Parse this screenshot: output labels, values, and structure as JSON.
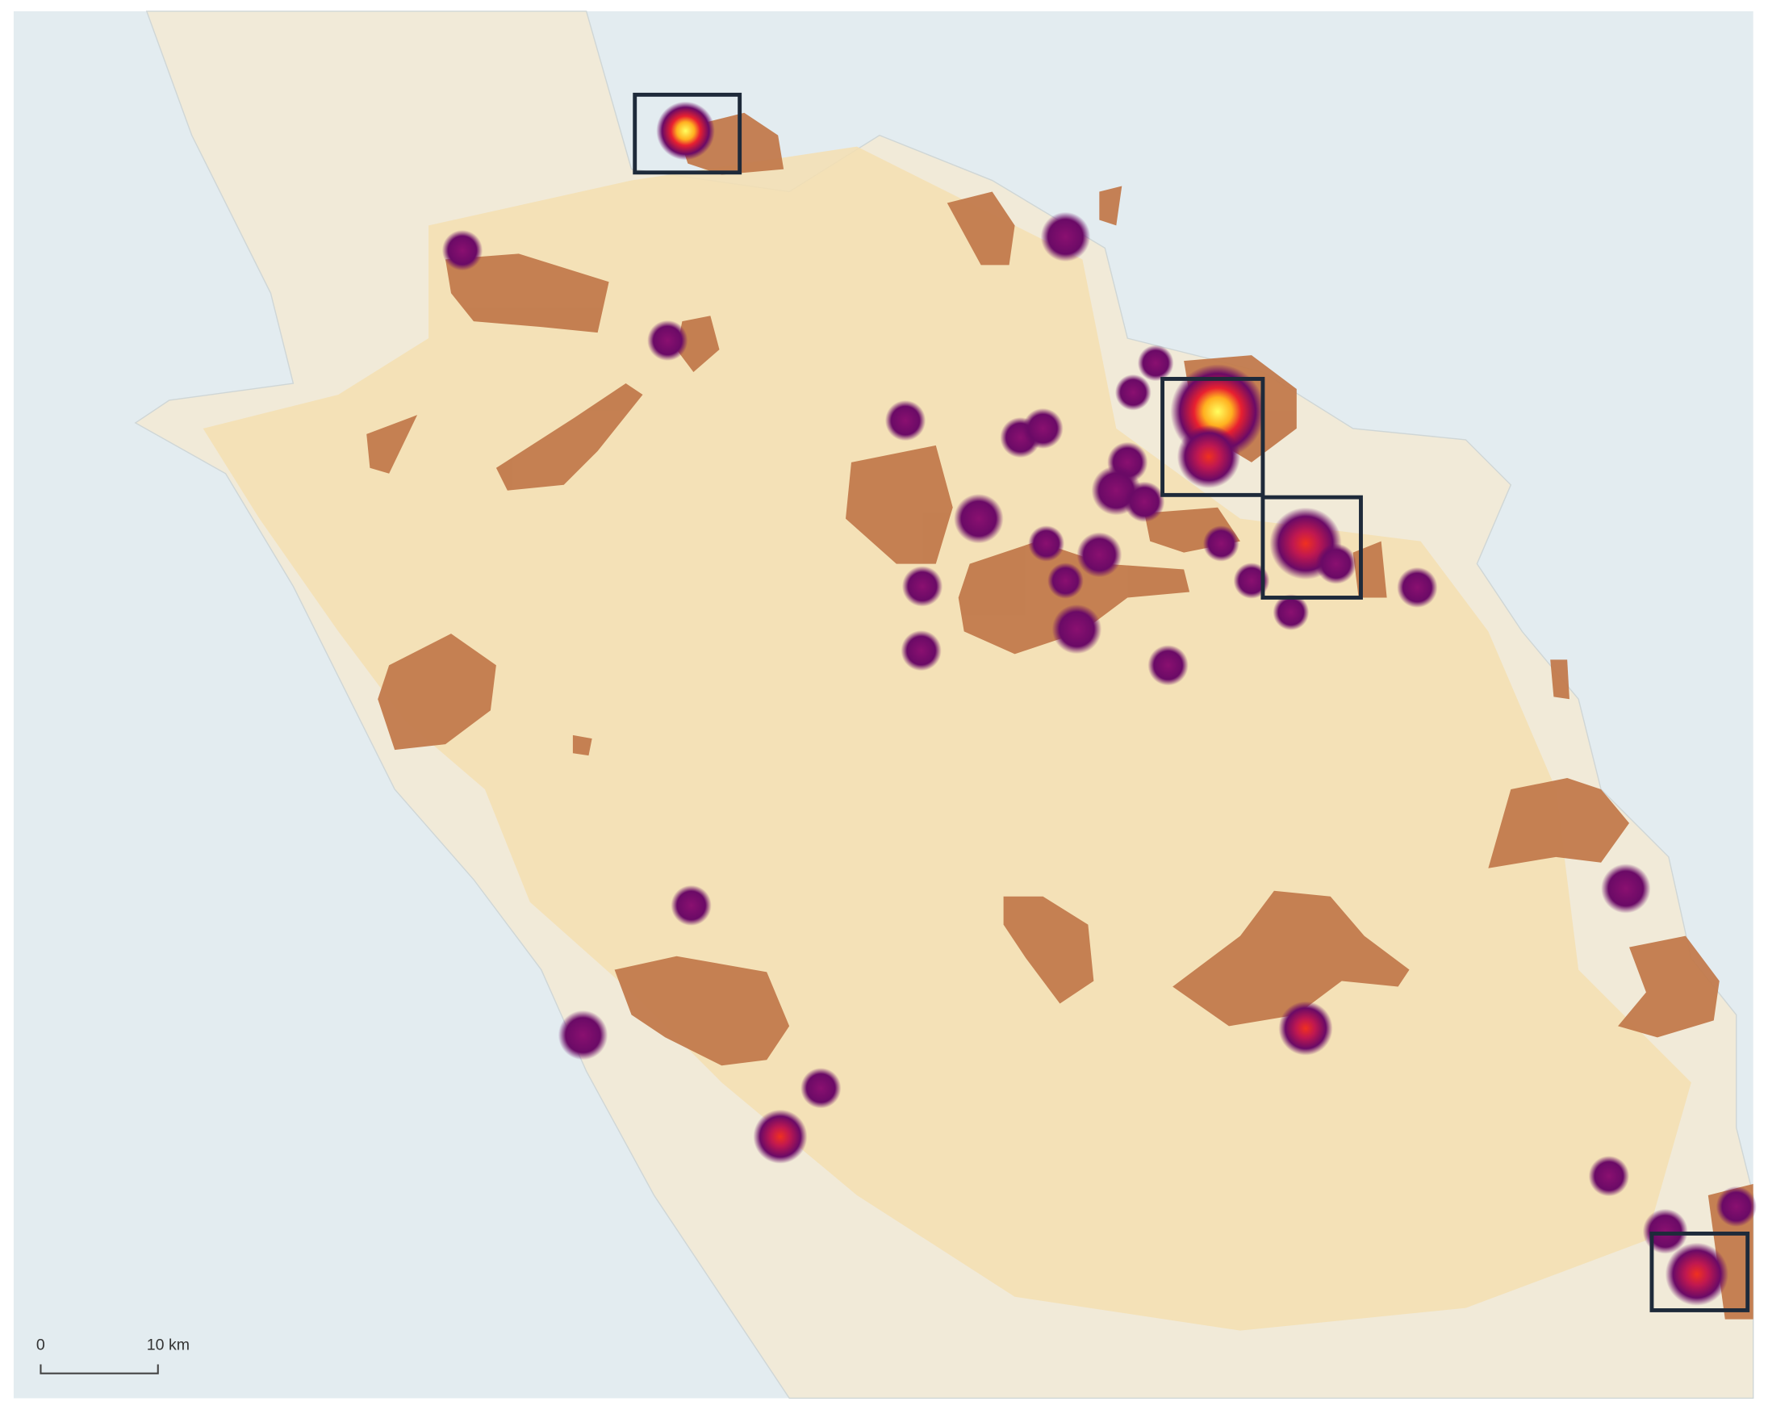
{
  "scale_bar": {
    "start_label": "0",
    "end_label": "10 km"
  }
}
